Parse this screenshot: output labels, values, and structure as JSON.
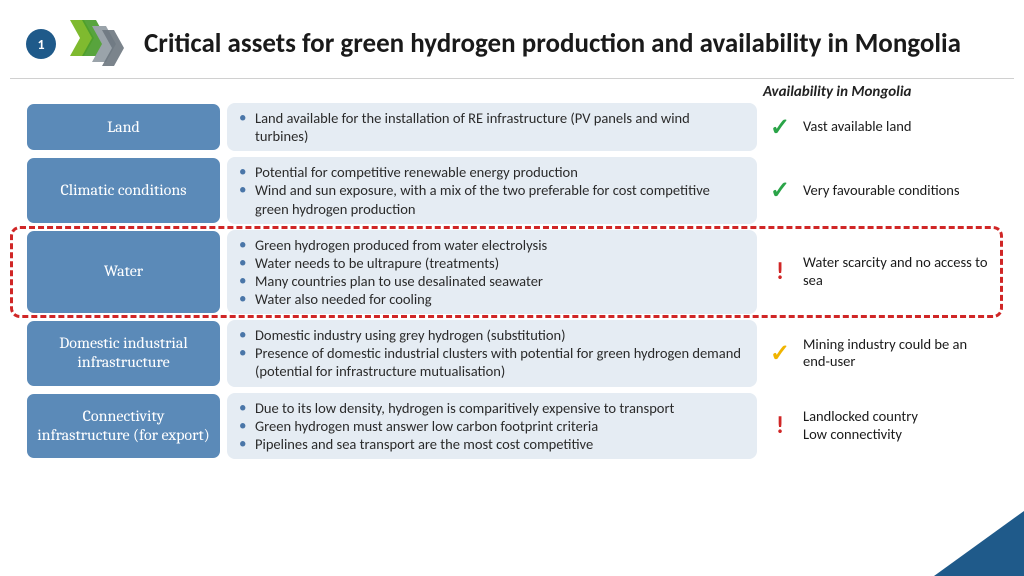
{
  "slide_number": "1",
  "title": "Critical assets for green hydrogen production and availability in Mongolia",
  "availability_header": "Availability in Mongolia",
  "logo": {
    "chev1": "#7fba2f",
    "chev2": "#4a9c2d",
    "chev3": "#9aa3aa",
    "chev4": "#6d7780"
  },
  "colors": {
    "badge_bg": "#1f5a8a",
    "cat_bg": "#5b8ab8",
    "desc_bg": "#e5ecf3",
    "green": "#2aa448",
    "yellow": "#f0b400",
    "red": "#d02626",
    "corner": "#1f5a8a"
  },
  "rows": [
    {
      "category": "Land",
      "bullets": [
        "Land available for the installation of RE infrastructure (PV panels and wind turbines)"
      ],
      "icon": "check",
      "icon_color": "#2aa448",
      "availability": "Vast available land",
      "highlight": false
    },
    {
      "category": "Climatic conditions",
      "bullets": [
        "Potential for competitive renewable energy production",
        "Wind and sun exposure, with a mix of the two preferable for cost competitive green hydrogen production"
      ],
      "icon": "check",
      "icon_color": "#2aa448",
      "availability": "Very favourable conditions",
      "highlight": false
    },
    {
      "category": "Water",
      "bullets": [
        "Green hydrogen produced from water electrolysis",
        "Water needs to be ultrapure (treatments)",
        "Many countries plan to use desalinated seawater",
        "Water also needed for cooling"
      ],
      "icon": "warn",
      "icon_color": "#d02626",
      "availability": "Water scarcity and no access to sea",
      "highlight": true
    },
    {
      "category": "Domestic industrial infrastructure",
      "bullets": [
        "Domestic industry using grey hydrogen (substitution)",
        "Presence of domestic industrial clusters with potential for green hydrogen demand (potential for infrastructure mutualisation)"
      ],
      "icon": "check",
      "icon_color": "#f0b400",
      "availability": "Mining industry could be an end-user",
      "highlight": false
    },
    {
      "category": "Connectivity infrastructure (for export)",
      "bullets": [
        "Due to its low density, hydrogen is comparitively expensive to transport",
        "Green hydrogen must answer low carbon footprint criteria",
        "Pipelines and sea transport are the most cost competitive"
      ],
      "icon": "warn",
      "icon_color": "#d02626",
      "availability": "Landlocked country\nLow connectivity",
      "highlight": false
    }
  ]
}
